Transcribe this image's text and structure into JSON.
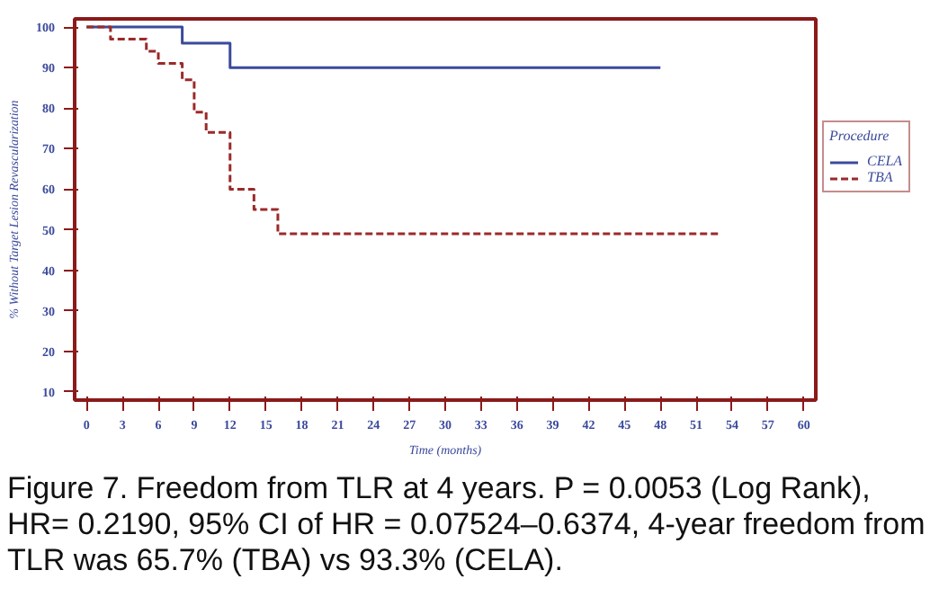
{
  "chart_data": {
    "type": "step",
    "xlabel": "Time (months)",
    "ylabel": "% Without Target Lesion Revascularization",
    "legend_title": "Procedure",
    "series": [
      {
        "name": "CELA",
        "color": "#3b4a9c",
        "line_style": "solid",
        "x": [
          0,
          8,
          12,
          48
        ],
        "values": [
          100,
          96,
          90,
          90
        ]
      },
      {
        "name": "TBA",
        "color": "#9b2a2a",
        "line_style": "dashed",
        "x": [
          0,
          2,
          5,
          6,
          8,
          9,
          10,
          12,
          14,
          16,
          53
        ],
        "values": [
          100,
          97,
          94,
          91,
          87,
          79,
          74,
          60,
          55,
          49,
          49
        ]
      }
    ],
    "xlim": [
      -1,
      61
    ],
    "ylim": [
      8,
      102
    ],
    "xticks": [
      0,
      3,
      6,
      9,
      12,
      15,
      18,
      21,
      24,
      27,
      30,
      33,
      36,
      39,
      42,
      45,
      48,
      51,
      54,
      57,
      60
    ],
    "yticks": [
      10,
      20,
      30,
      40,
      50,
      60,
      70,
      80,
      90,
      100
    ],
    "grid": false,
    "legend": "right",
    "marker": "none",
    "annotations": [
      "Figure 7. Freedom from TLR at 4 years. P = 0.0053 (Log Rank), HR= 0.2190, 95% CI of HR = 0.07524–0.6374, 4-year freedom from TLR was 65.7% (TBA) vs 93.3% (CELA)."
    ]
  }
}
